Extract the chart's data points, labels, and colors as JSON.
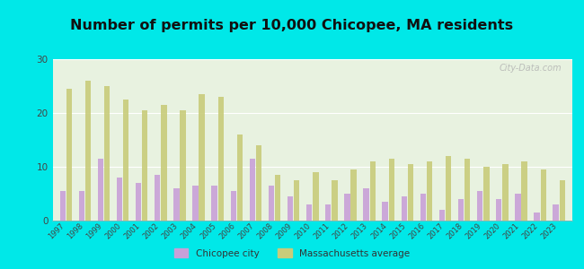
{
  "title": "Number of permits per 10,000 Chicopee, MA residents",
  "years": [
    1997,
    1998,
    1999,
    2000,
    2001,
    2002,
    2003,
    2004,
    2005,
    2006,
    2007,
    2008,
    2009,
    2010,
    2011,
    2012,
    2013,
    2014,
    2015,
    2016,
    2017,
    2018,
    2019,
    2020,
    2021,
    2022,
    2023
  ],
  "chicopee": [
    5.5,
    5.5,
    11.5,
    8.0,
    7.0,
    8.5,
    6.0,
    6.5,
    6.5,
    5.5,
    11.5,
    6.5,
    4.5,
    3.0,
    3.0,
    5.0,
    6.0,
    3.5,
    4.5,
    5.0,
    2.0,
    4.0,
    5.5,
    4.0,
    5.0,
    1.5,
    3.0
  ],
  "ma_avg": [
    24.5,
    26.0,
    25.0,
    22.5,
    20.5,
    21.5,
    20.5,
    23.5,
    23.0,
    16.0,
    14.0,
    8.5,
    7.5,
    9.0,
    7.5,
    9.5,
    11.0,
    11.5,
    10.5,
    11.0,
    12.0,
    11.5,
    10.0,
    10.5,
    11.0,
    9.5,
    7.5
  ],
  "chicopee_color": "#c8a0d8",
  "ma_avg_color": "#c8cc7a",
  "background_outer": "#00e8e8",
  "grid_color": "#ffffff",
  "title_fontsize": 11.5,
  "ylim": [
    0,
    30
  ],
  "yticks": [
    0,
    10,
    20,
    30
  ],
  "watermark": "City-Data.com",
  "legend_chicopee": "Chicopee city",
  "legend_ma": "Massachusetts average"
}
